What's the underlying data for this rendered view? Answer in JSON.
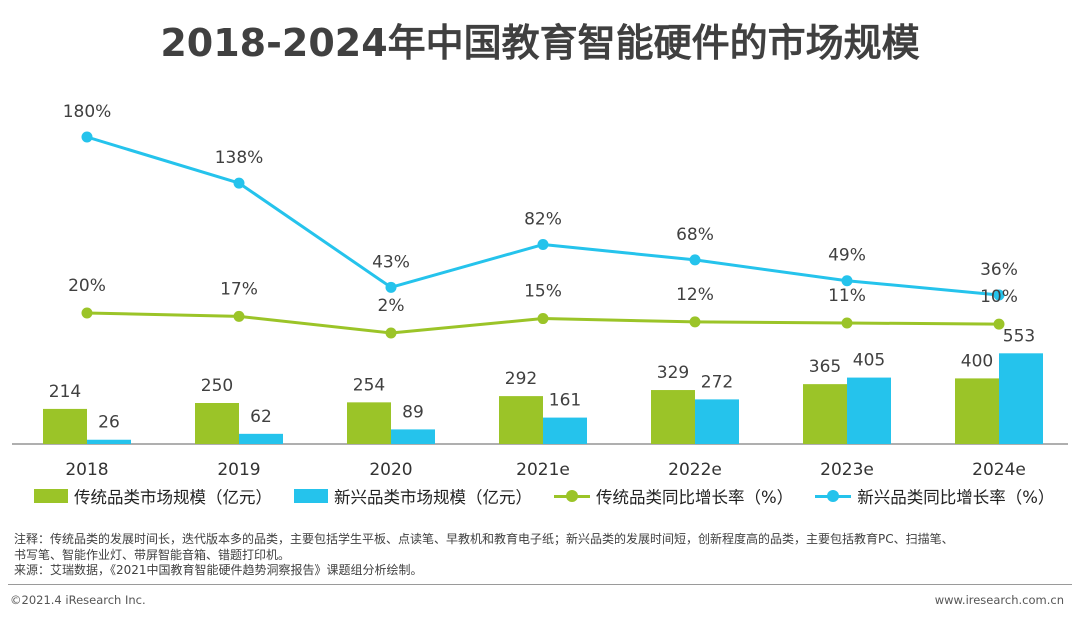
{
  "title": "2018-2024年中国教育智能硬件的市场规模",
  "chart_data": {
    "type": "bar",
    "categories": [
      "2018",
      "2019",
      "2020",
      "2021e",
      "2022e",
      "2023e",
      "2024e"
    ],
    "series": [
      {
        "name": "传统品类市场规模（亿元）",
        "type": "bar",
        "values": [
          214,
          250,
          254,
          292,
          329,
          365,
          400
        ],
        "labels": [
          "214",
          "250",
          "254",
          "292",
          "329",
          "365",
          "400"
        ],
        "color": "#9bc428"
      },
      {
        "name": "新兴品类市场规模（亿元）",
        "type": "bar",
        "values": [
          26,
          62,
          89,
          161,
          272,
          405,
          553
        ],
        "labels": [
          "26",
          "62",
          "89",
          "161",
          "272",
          "405",
          "553"
        ],
        "color": "#25c3ec"
      },
      {
        "name": "传统品类同比增长率（%）",
        "type": "line",
        "values": [
          20,
          17,
          2,
          15,
          12,
          11,
          10
        ],
        "labels": [
          "20%",
          "17%",
          "2%",
          "15%",
          "12%",
          "11%",
          "10%"
        ],
        "color": "#9bc428"
      },
      {
        "name": "新兴品类同比增长率（%）",
        "type": "line",
        "values": [
          180,
          138,
          43,
          82,
          68,
          49,
          36
        ],
        "labels": [
          "180%",
          "138%",
          "43%",
          "82%",
          "68%",
          "49%",
          "36%"
        ],
        "color": "#25c3ec"
      }
    ]
  },
  "notes": {
    "line1": "注释：传统品类的发展时间长，迭代版本多的品类，主要包括学生平板、点读笔、早教机和教育电子纸；新兴品类的发展时间短，创新程度高的品类，主要包括教育PC、扫描笔、",
    "line2": "书写笔、智能作业灯、带屏智能音箱、错题打印机。",
    "line3": "来源：艾瑞数据，《2021中国教育智能硬件趋势洞察报告》课题组分析绘制。"
  },
  "footer": {
    "copyright": "©2021.4 iResearch Inc.",
    "website": "www.iresearch.com.cn"
  }
}
